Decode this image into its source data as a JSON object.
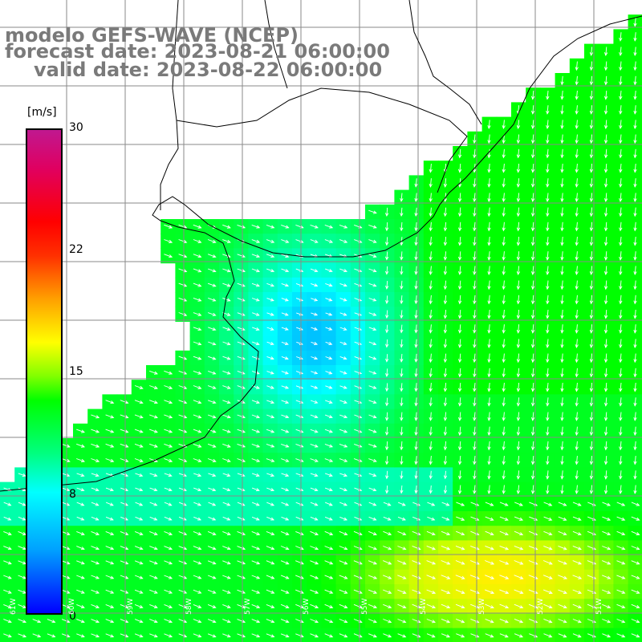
{
  "title": {
    "line1": "modelo GEFS-WAVE (NCEP)",
    "line2": "forecast date: 2023-08-21 06:00:00",
    "line3": "valid date: 2023-08-22 06:00:00"
  },
  "colorbar": {
    "unit": "[m/s]",
    "ticks": [
      "30",
      "22",
      "15",
      "8",
      "0"
    ],
    "tick_values": [
      30,
      22,
      15,
      8,
      0
    ],
    "min": 0,
    "max": 30
  },
  "lon_labels": [
    "61W",
    "60W",
    "59W",
    "58W",
    "57W",
    "56W",
    "55W",
    "54W",
    "53W",
    "52W",
    "51W"
  ],
  "colors": {
    "land": "#ffffff",
    "coastline": "#000000",
    "grid": "#8a8a8a",
    "arrow": "#ffffff",
    "title": "#7a7a7a"
  }
}
